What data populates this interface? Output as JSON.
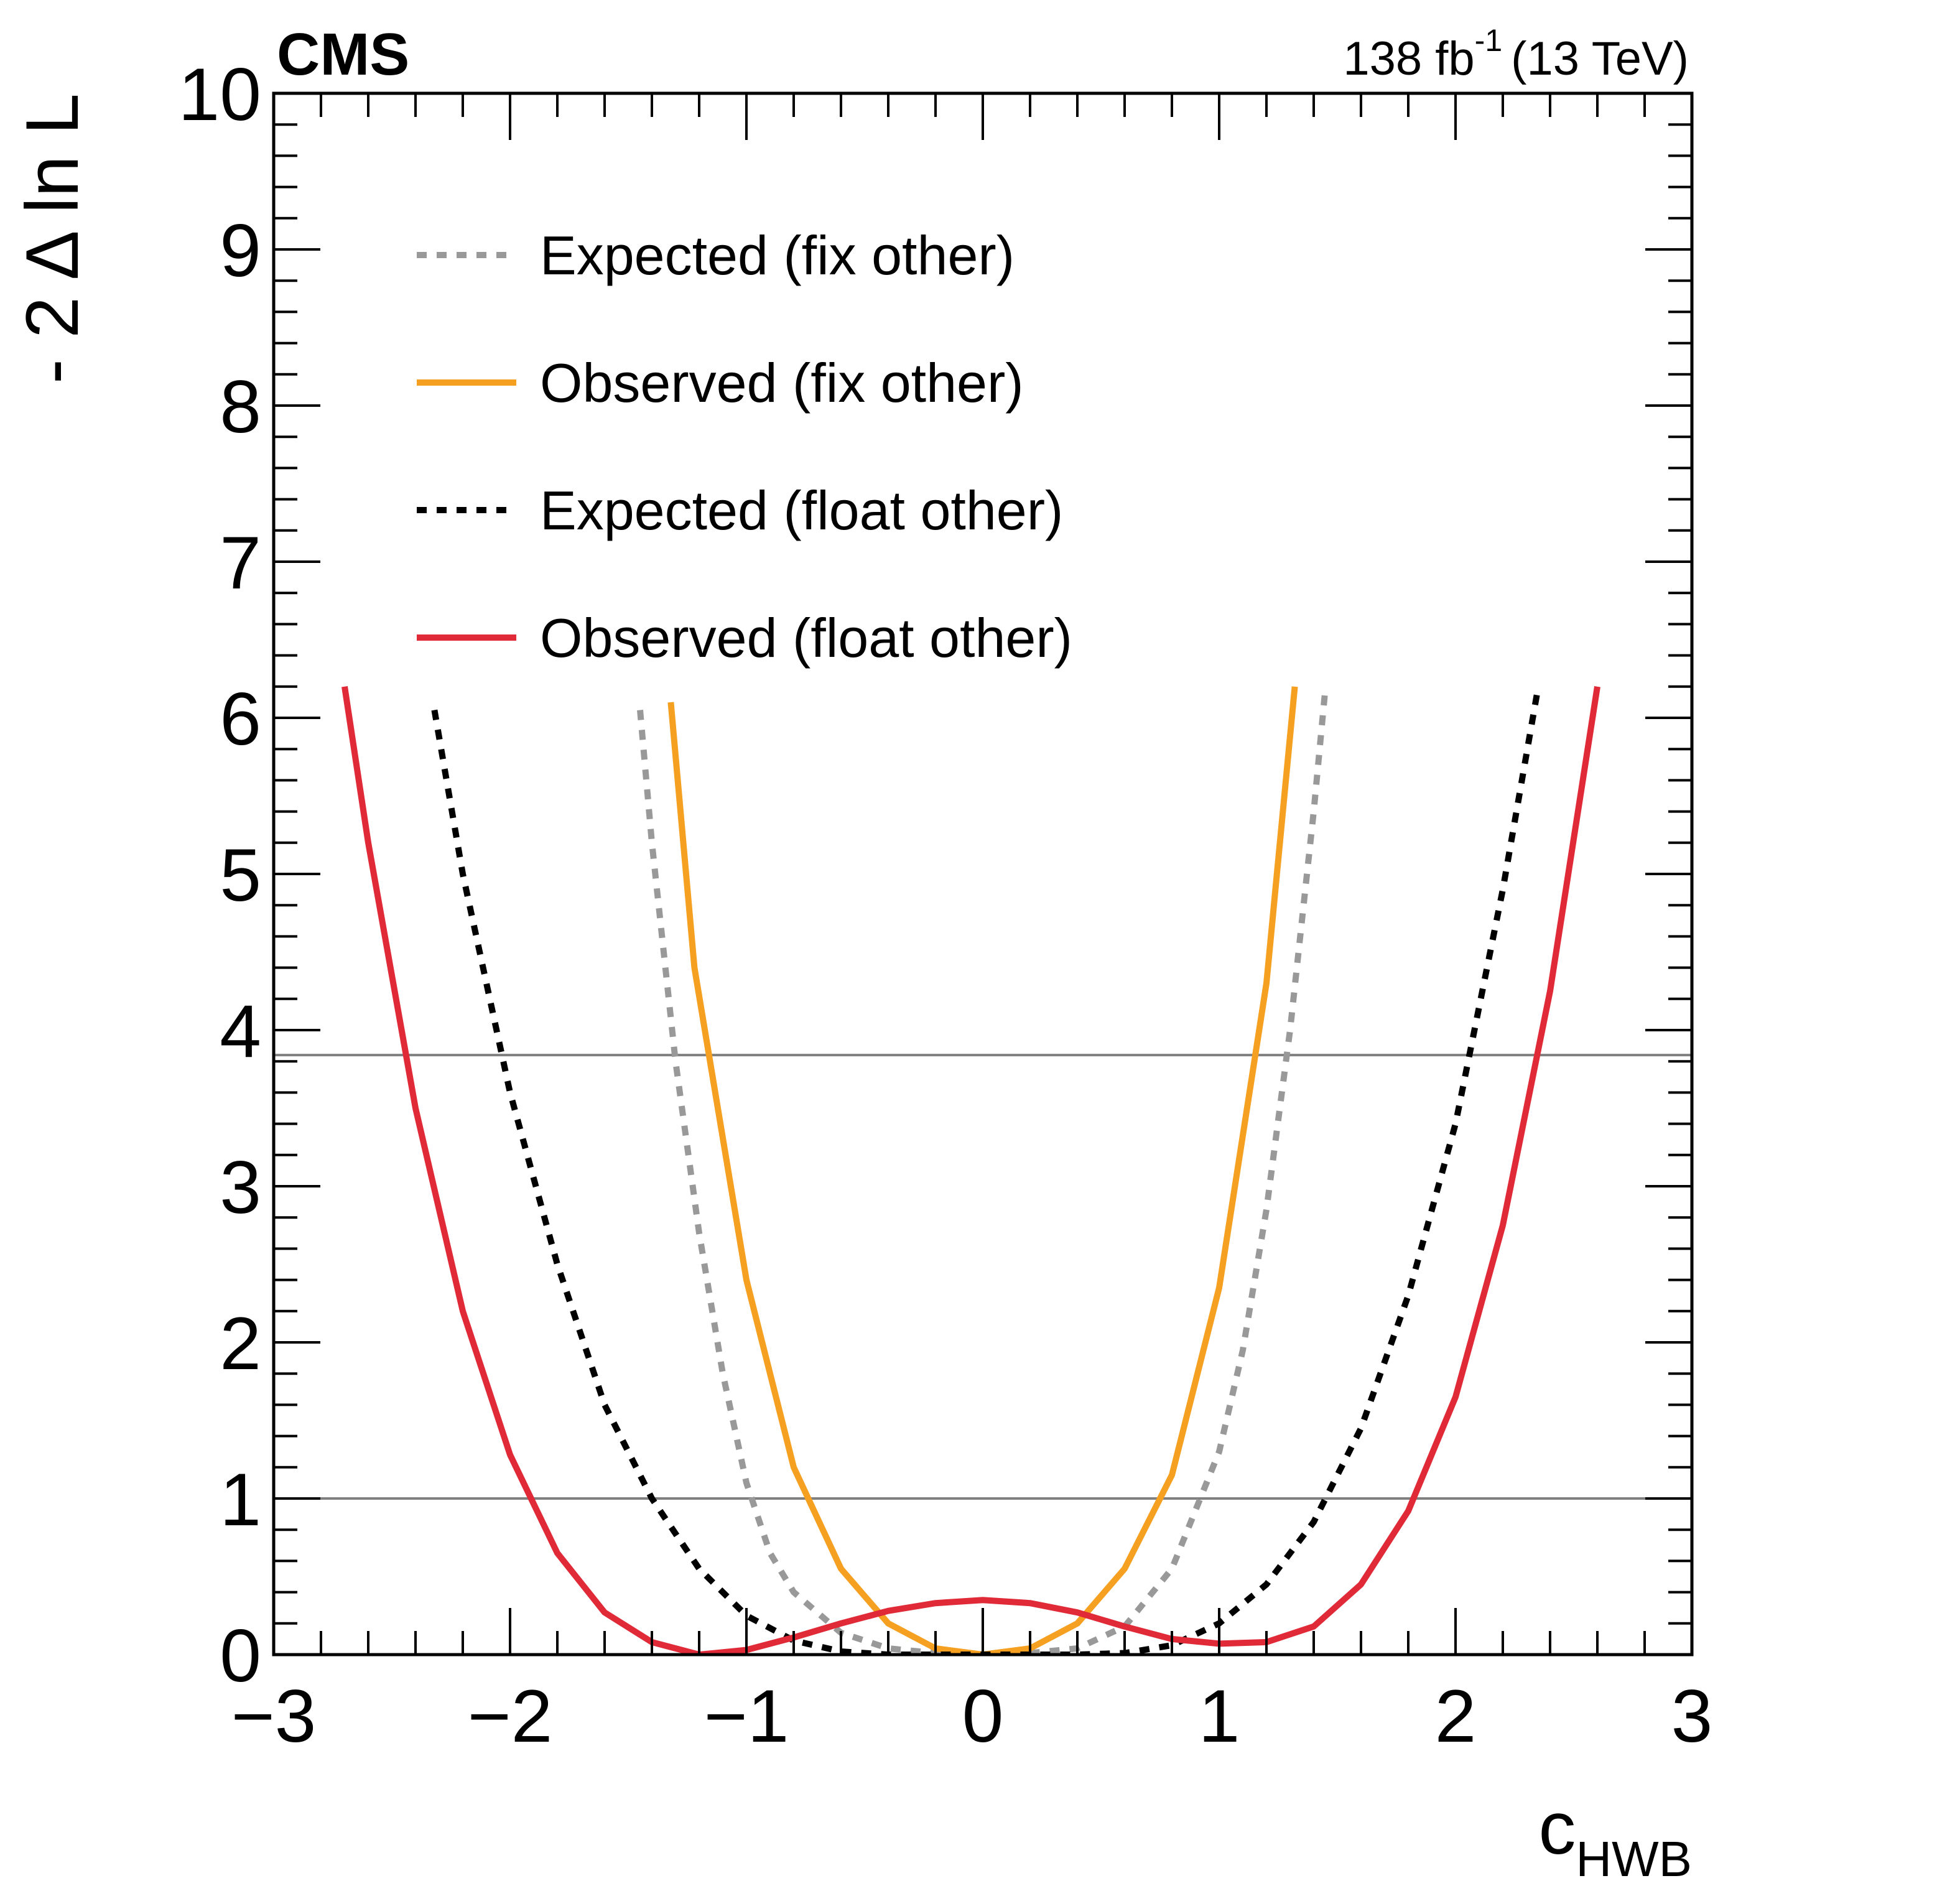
{
  "chart_data": {
    "type": "line",
    "experiment": "CMS",
    "luminosity": {
      "value": "138 fb",
      "exponent": "-1",
      "energy": "(13 TeV)"
    },
    "xlabel": {
      "main": "c",
      "sub": "HWB"
    },
    "ylabel": "- 2 Δ ln L",
    "xlim": [
      -3,
      3
    ],
    "ylim": [
      0,
      10
    ],
    "xticks": [
      {
        "value": -3,
        "label": "−3"
      },
      {
        "value": -2,
        "label": "−2"
      },
      {
        "value": -1,
        "label": "−1"
      },
      {
        "value": 0,
        "label": "0"
      },
      {
        "value": 1,
        "label": "1"
      },
      {
        "value": 2,
        "label": "2"
      },
      {
        "value": 3,
        "label": "3"
      }
    ],
    "yticks": [
      {
        "value": 0,
        "label": "0"
      },
      {
        "value": 1,
        "label": "1"
      },
      {
        "value": 2,
        "label": "2"
      },
      {
        "value": 3,
        "label": "3"
      },
      {
        "value": 4,
        "label": "4"
      },
      {
        "value": 5,
        "label": "5"
      },
      {
        "value": 6,
        "label": "6"
      },
      {
        "value": 7,
        "label": "7"
      },
      {
        "value": 8,
        "label": "8"
      },
      {
        "value": 9,
        "label": "9"
      },
      {
        "value": 10,
        "label": "10"
      }
    ],
    "reference_lines": [
      1,
      3.84
    ],
    "legend_position": "top-left",
    "series": [
      {
        "name": "Expected (fix other)",
        "color": "#999999",
        "style": "dashed",
        "points": [
          [
            -1.45,
            6.05
          ],
          [
            -1.4,
            5.2
          ],
          [
            -1.3,
            3.8
          ],
          [
            -1.2,
            2.7
          ],
          [
            -1.1,
            1.8
          ],
          [
            -1.0,
            1.1
          ],
          [
            -0.9,
            0.65
          ],
          [
            -0.8,
            0.4
          ],
          [
            -0.6,
            0.14
          ],
          [
            -0.4,
            0.04
          ],
          [
            -0.2,
            0.01
          ],
          [
            0.0,
            0.0
          ],
          [
            0.2,
            0.01
          ],
          [
            0.4,
            0.04
          ],
          [
            0.6,
            0.18
          ],
          [
            0.8,
            0.55
          ],
          [
            1.0,
            1.3
          ],
          [
            1.1,
            1.95
          ],
          [
            1.2,
            2.85
          ],
          [
            1.3,
            4.0
          ],
          [
            1.4,
            5.4
          ],
          [
            1.45,
            6.2
          ]
        ]
      },
      {
        "name": "Observed (fix other)",
        "color": "#f5a020",
        "style": "solid",
        "points": [
          [
            -1.32,
            6.1
          ],
          [
            -1.22,
            4.4
          ],
          [
            -1.0,
            2.4
          ],
          [
            -0.8,
            1.2
          ],
          [
            -0.6,
            0.55
          ],
          [
            -0.4,
            0.2
          ],
          [
            -0.2,
            0.04
          ],
          [
            0.0,
            0.0
          ],
          [
            0.2,
            0.04
          ],
          [
            0.4,
            0.2
          ],
          [
            0.6,
            0.55
          ],
          [
            0.8,
            1.15
          ],
          [
            1.0,
            2.35
          ],
          [
            1.2,
            4.3
          ],
          [
            1.32,
            6.2
          ]
        ]
      },
      {
        "name": "Expected (float other)",
        "color": "#000000",
        "style": "dashed",
        "points": [
          [
            -2.32,
            6.05
          ],
          [
            -2.2,
            5.0
          ],
          [
            -2.0,
            3.6
          ],
          [
            -1.8,
            2.5
          ],
          [
            -1.6,
            1.6
          ],
          [
            -1.4,
            1.0
          ],
          [
            -1.2,
            0.55
          ],
          [
            -1.0,
            0.25
          ],
          [
            -0.8,
            0.09
          ],
          [
            -0.6,
            0.02
          ],
          [
            -0.4,
            0.0
          ],
          [
            -0.2,
            0.0
          ],
          [
            0.0,
            0.0
          ],
          [
            0.2,
            0.0
          ],
          [
            0.4,
            0.0
          ],
          [
            0.6,
            0.01
          ],
          [
            0.8,
            0.06
          ],
          [
            1.0,
            0.2
          ],
          [
            1.2,
            0.45
          ],
          [
            1.4,
            0.85
          ],
          [
            1.6,
            1.45
          ],
          [
            1.8,
            2.3
          ],
          [
            2.0,
            3.4
          ],
          [
            2.2,
            4.9
          ],
          [
            2.35,
            6.2
          ]
        ]
      },
      {
        "name": "Observed (float other)",
        "color": "#e02a37",
        "style": "solid",
        "points": [
          [
            -2.7,
            6.2
          ],
          [
            -2.6,
            5.2
          ],
          [
            -2.4,
            3.5
          ],
          [
            -2.2,
            2.2
          ],
          [
            -2.0,
            1.28
          ],
          [
            -1.8,
            0.65
          ],
          [
            -1.6,
            0.27
          ],
          [
            -1.4,
            0.08
          ],
          [
            -1.2,
            0.0
          ],
          [
            -1.0,
            0.03
          ],
          [
            -0.8,
            0.11
          ],
          [
            -0.6,
            0.2
          ],
          [
            -0.4,
            0.28
          ],
          [
            -0.2,
            0.33
          ],
          [
            0.0,
            0.35
          ],
          [
            0.2,
            0.33
          ],
          [
            0.4,
            0.27
          ],
          [
            0.6,
            0.18
          ],
          [
            0.8,
            0.1
          ],
          [
            1.0,
            0.07
          ],
          [
            1.2,
            0.08
          ],
          [
            1.4,
            0.18
          ],
          [
            1.6,
            0.45
          ],
          [
            1.8,
            0.92
          ],
          [
            2.0,
            1.65
          ],
          [
            2.2,
            2.75
          ],
          [
            2.4,
            4.25
          ],
          [
            2.6,
            6.2
          ]
        ]
      }
    ]
  }
}
